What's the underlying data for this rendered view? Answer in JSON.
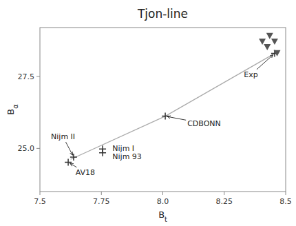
{
  "chart_data": {
    "type": "scatter",
    "title": "Tjon-line",
    "x_label": "Bt",
    "y_label": "Bα",
    "xlim": [
      7.5,
      8.5
    ],
    "ylim": [
      23.5,
      29.2
    ],
    "xticks": [
      7.5,
      7.75,
      {
        "value": 8.0,
        "label": "8.0"
      },
      8.25,
      8.5
    ],
    "yticks": [
      {
        "value": 25.0,
        "label": "25.0"
      },
      27.5
    ],
    "series": [
      {
        "type": "line",
        "color": "#aaaaaa",
        "x": [
          7.625,
          8.01,
          8.455
        ],
        "values": [
          24.62,
          26.12,
          28.3
        ]
      },
      {
        "type": "scatter",
        "marker": "plus",
        "color": "#333333",
        "x": [
          7.637,
          7.615,
          7.755,
          7.755,
          8.01,
          8.455
        ],
        "values": [
          24.7,
          24.52,
          24.98,
          24.85,
          26.12,
          28.3
        ]
      },
      {
        "type": "scatter",
        "marker": "triangle-down",
        "color": "#555555",
        "x": [
          8.435,
          8.405,
          8.455,
          8.425,
          8.465
        ],
        "values": [
          28.92,
          28.72,
          28.72,
          28.53,
          28.32
        ]
      }
    ],
    "annotations": [
      {
        "text": "Nijm II",
        "x": 7.637,
        "y": 24.7,
        "text_x": 7.545,
        "text_y": 25.32,
        "arrow": true,
        "color": "#222222"
      },
      {
        "text": "AV18",
        "x": 7.615,
        "y": 24.52,
        "text_x": 7.645,
        "text_y": 24.08,
        "arrow": true,
        "color": "#222222"
      },
      {
        "text": "Nijm I",
        "text_x": 7.795,
        "text_y": 24.92,
        "arrow": false,
        "color": "#222222"
      },
      {
        "text": "Nijm 93",
        "text_x": 7.795,
        "text_y": 24.63,
        "arrow": false,
        "color": "#222222"
      },
      {
        "text": "CDBONN",
        "x": 8.01,
        "y": 26.12,
        "text_x": 8.1,
        "text_y": 25.78,
        "arrow": true,
        "color": "#222222"
      },
      {
        "text": "Exp",
        "x": 8.455,
        "y": 28.3,
        "text_x": 8.33,
        "text_y": 27.48,
        "arrow": true,
        "color": "#222222"
      }
    ]
  }
}
